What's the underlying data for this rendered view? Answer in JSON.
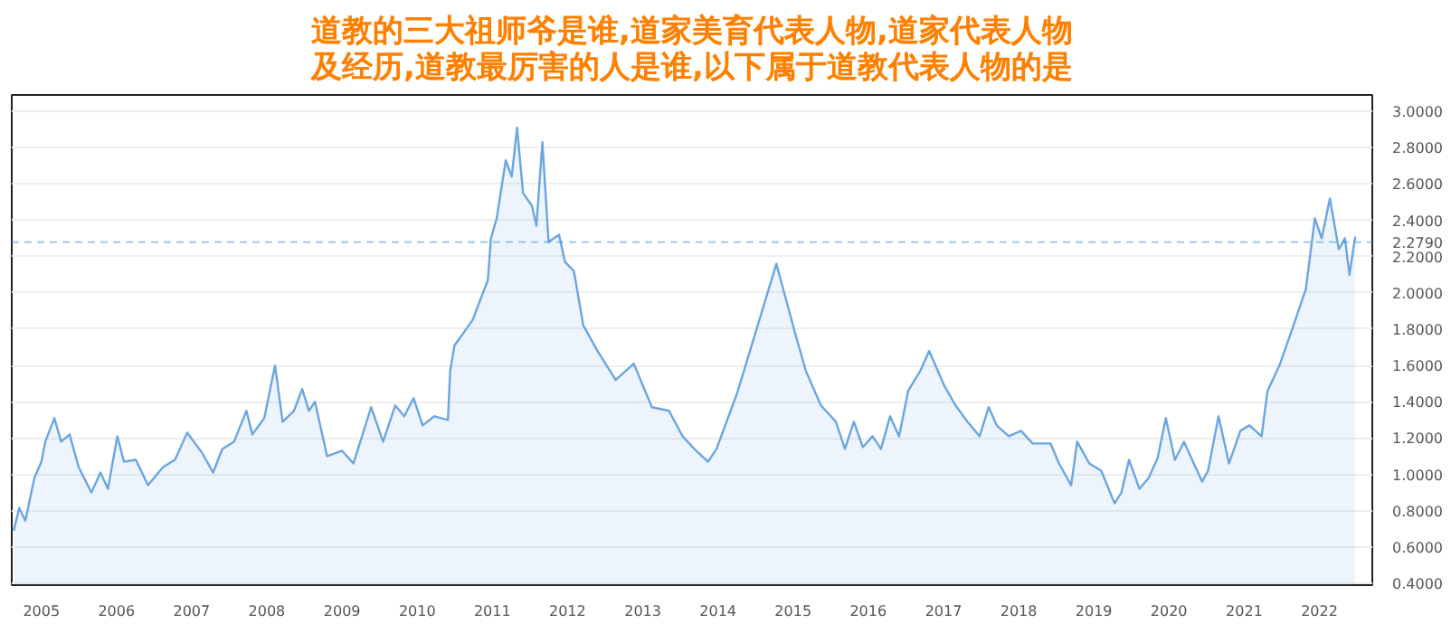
{
  "chart_data": {
    "type": "area",
    "title": "道教的三大祖师爷是谁,道家美育代表人物,道家代表人物及经历,道教最厉害的人是谁,以下属于道教代表人物的是",
    "x": [
      "2004-08-20",
      "2004-09-15",
      "2004-10-15",
      "2004-11-28",
      "2005-01-01",
      "2005-01-20",
      "2005-03-05",
      "2005-04-07",
      "2005-05-18",
      "2005-07-01",
      "2005-09-01",
      "2005-10-15",
      "2005-11-20",
      "2006-01-05",
      "2006-02-06",
      "2006-04-05",
      "2006-06-03",
      "2006-08-15",
      "2006-10-12",
      "2006-12-10",
      "2007-02-20",
      "2007-04-15",
      "2007-05-30",
      "2007-07-26",
      "2007-09-24",
      "2007-10-23",
      "2007-12-20",
      "2008-02-10",
      "2008-03-18",
      "2008-05-12",
      "2008-06-21",
      "2008-07-24",
      "2008-08-22",
      "2008-10-20",
      "2009-01-01",
      "2009-02-25",
      "2009-05-22",
      "2009-07-19",
      "2009-09-16",
      "2009-10-30",
      "2009-12-14",
      "2010-01-27",
      "2010-03-25",
      "2010-05-30",
      "2010-06-10",
      "2010-07-01",
      "2010-09-27",
      "2010-12-10",
      "2010-12-25",
      "2011-01-22",
      "2011-03-07",
      "2011-04-05",
      "2011-05-01",
      "2011-05-30",
      "2011-07-12",
      "2011-08-03",
      "2011-09-01",
      "2011-10-01",
      "2011-11-21",
      "2011-12-20",
      "2012-02-01",
      "2012-03-18",
      "2012-05-26",
      "2012-08-22",
      "2012-11-18",
      "2013-02-14",
      "2013-05-08",
      "2013-07-13",
      "2013-09-17",
      "2013-11-14",
      "2013-12-25",
      "2014-04-05",
      "2014-10-12",
      "2015-01-08",
      "2015-03-04",
      "2015-05-16",
      "2015-07-28",
      "2015-09-10",
      "2015-10-23",
      "2015-12-06",
      "2016-01-22",
      "2016-03-03",
      "2016-04-16",
      "2016-05-30",
      "2016-07-13",
      "2016-09-10",
      "2016-10-23",
      "2017-01-04",
      "2017-02-28",
      "2017-04-27",
      "2017-06-25",
      "2017-08-08",
      "2017-09-16",
      "2017-11-14",
      "2018-01-12",
      "2018-03-10",
      "2018-06-05",
      "2018-07-16",
      "2018-09-13",
      "2018-10-12",
      "2018-12-10",
      "2019-02-06",
      "2019-04-12",
      "2019-05-15",
      "2019-06-21",
      "2019-08-11",
      "2019-09-24",
      "2019-11-07",
      "2019-12-17",
      "2020-01-30",
      "2020-03-14",
      "2020-04-27",
      "2020-06-10",
      "2020-07-09",
      "2020-08-29",
      "2020-10-19",
      "2020-12-13",
      "2021-01-26",
      "2021-03-26",
      "2021-04-24",
      "2021-06-21",
      "2021-08-19",
      "2021-10-27",
      "2021-12-10",
      "2022-01-12",
      "2022-02-21",
      "2022-04-05",
      "2022-05-05",
      "2022-05-27",
      "2022-06-24"
    ],
    "series": [
      {
        "color": "#6aa6e0",
        "values": [
          0.69,
          0.815,
          0.745,
          0.98,
          1.07,
          1.18,
          1.31,
          1.18,
          1.22,
          1.04,
          0.9,
          1.01,
          0.92,
          1.21,
          1.07,
          1.08,
          0.94,
          1.04,
          1.08,
          1.23,
          1.12,
          1.01,
          1.14,
          1.18,
          1.35,
          1.22,
          1.31,
          1.6,
          1.29,
          1.35,
          1.47,
          1.35,
          1.4,
          1.1,
          1.13,
          1.06,
          1.37,
          1.18,
          1.38,
          1.32,
          1.42,
          1.27,
          1.32,
          1.3,
          1.57,
          1.71,
          1.85,
          2.07,
          2.3,
          2.41,
          2.73,
          2.64,
          2.91,
          2.55,
          2.48,
          2.37,
          2.83,
          2.28,
          2.32,
          2.17,
          2.12,
          1.82,
          1.68,
          1.52,
          1.61,
          1.37,
          1.35,
          1.21,
          1.13,
          1.07,
          1.14,
          1.45,
          2.16,
          1.79,
          1.57,
          1.38,
          1.29,
          1.14,
          1.29,
          1.15,
          1.21,
          1.14,
          1.32,
          1.21,
          1.46,
          1.57,
          1.68,
          1.49,
          1.38,
          1.29,
          1.21,
          1.37,
          1.27,
          1.21,
          1.24,
          1.17,
          1.17,
          1.06,
          0.94,
          1.18,
          1.06,
          1.02,
          0.84,
          0.9,
          1.08,
          0.92,
          0.98,
          1.09,
          1.31,
          1.08,
          1.18,
          1.07,
          0.96,
          1.02,
          1.32,
          1.06,
          1.24,
          1.27,
          1.21,
          1.46,
          1.6,
          1.79,
          2.02,
          2.41,
          2.3,
          2.52,
          2.24,
          2.3,
          2.1,
          2.31
        ]
      }
    ],
    "xlim": [
      "2004-08-10",
      "2022-09-15"
    ],
    "xticks": [
      "2005",
      "2006",
      "2007",
      "2008",
      "2009",
      "2010",
      "2011",
      "2012",
      "2013",
      "2014",
      "2015",
      "2016",
      "2017",
      "2018",
      "2019",
      "2020",
      "2021",
      "2022"
    ],
    "ylim": [
      0.39,
      3.09
    ],
    "yticks": [
      {
        "value": 0.4,
        "label": "0.4000"
      },
      {
        "value": 0.6,
        "label": "0.6000"
      },
      {
        "value": 0.8,
        "label": "0.8000"
      },
      {
        "value": 1.0,
        "label": "1.0000"
      },
      {
        "value": 1.2,
        "label": "1.2000"
      },
      {
        "value": 1.4,
        "label": "1.4000"
      },
      {
        "value": 1.6,
        "label": "1.6000"
      },
      {
        "value": 1.8,
        "label": "1.8000"
      },
      {
        "value": 2.0,
        "label": "2.0000"
      },
      {
        "value": 2.2,
        "label": "2.2000"
      },
      {
        "value": 2.4,
        "label": "2.4000"
      },
      {
        "value": 2.6,
        "label": "2.6000"
      },
      {
        "value": 2.8,
        "label": "2.8000"
      },
      {
        "value": 3.0,
        "label": "3.0000"
      }
    ],
    "ref_lines": [
      {
        "axis": "y",
        "value": 2.279,
        "label": "2.2790",
        "color": "#4a90d9",
        "line_style": "dashed"
      }
    ],
    "grid": true
  }
}
